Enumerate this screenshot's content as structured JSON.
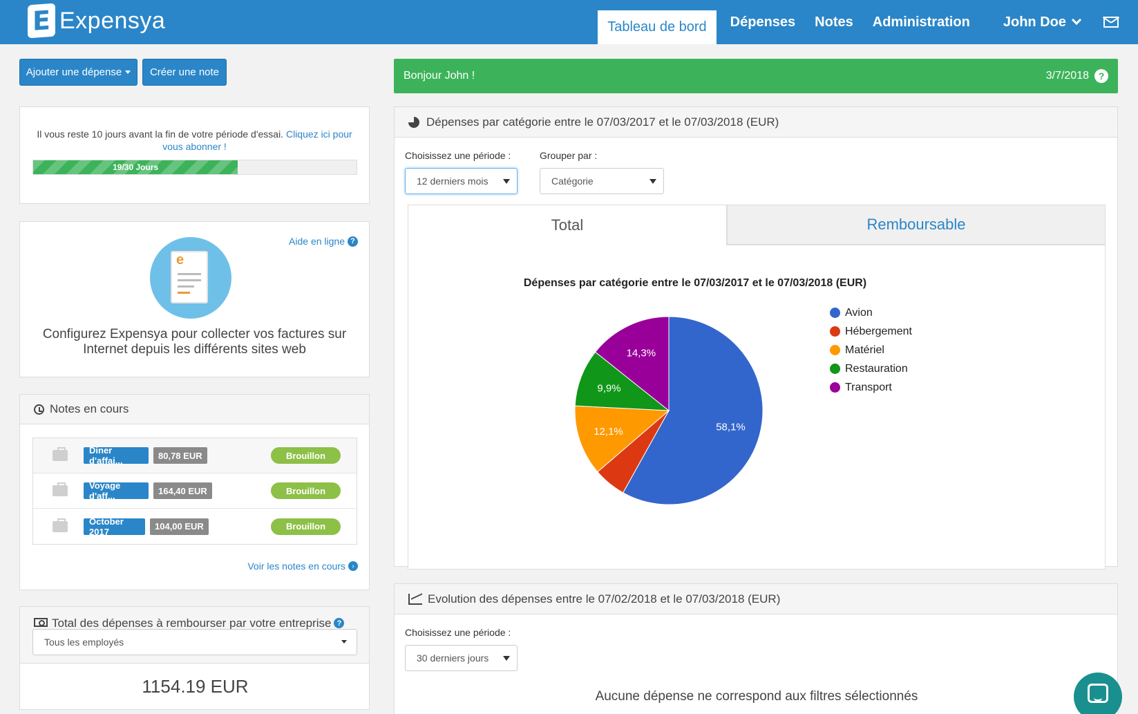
{
  "brand": {
    "logo_letter": "E",
    "name": "Expensya"
  },
  "nav": {
    "items": [
      {
        "label": "Tableau de bord",
        "active": true
      },
      {
        "label": "Dépenses"
      },
      {
        "label": "Notes"
      },
      {
        "label": "Administration"
      }
    ],
    "user": "John Doe"
  },
  "actions": {
    "add_expense": "Ajouter une dépense",
    "create_note": "Créer une note"
  },
  "trial": {
    "message": "Il vous reste 10 jours avant la fin de votre période d'essai.",
    "link": "Cliquez ici pour vous abonner !",
    "progress_label": "19/30 Jours",
    "progress_fraction": 0.633
  },
  "help": {
    "link": "Aide en ligne",
    "text": "Configurez Expensya pour collecter vos factures sur Internet depuis les différents sites web",
    "doc_letter": "e"
  },
  "notes": {
    "title": "Notes en cours",
    "rows": [
      {
        "name": "Diner d'affai...",
        "amount": "80,78 EUR",
        "status": "Brouillon"
      },
      {
        "name": "Voyage d'aff...",
        "amount": "164,40 EUR",
        "status": "Brouillon"
      },
      {
        "name": "October 2017",
        "amount": "104,00 EUR",
        "status": "Brouillon"
      }
    ],
    "more_link": "Voir les notes en cours"
  },
  "reimburse": {
    "title": "Total des dépenses à rembourser par votre entreprise",
    "employee_select": "Tous les employés",
    "total": "1154.19 EUR"
  },
  "greeting": {
    "text": "Bonjour John !",
    "date": "3/7/2018"
  },
  "category_panel": {
    "title": "Dépenses par catégorie entre le 07/03/2017 et le 07/03/2018 (EUR)",
    "period_label": "Choisissez une période :",
    "period_value": "12 derniers mois",
    "group_label": "Grouper par :",
    "group_value": "Catégorie",
    "tabs": [
      "Total",
      "Remboursable"
    ]
  },
  "chart_data": {
    "type": "pie",
    "title": "Dépenses par catégorie entre le 07/03/2017 et le 07/03/2018 (EUR)",
    "categories": [
      "Avion",
      "Hébergement",
      "Matériel",
      "Restauration",
      "Transport"
    ],
    "values": [
      58.1,
      5.6,
      12.1,
      9.9,
      14.3
    ],
    "labels": [
      "58,1%",
      "",
      "12,1%",
      "9,9%",
      "14,3%"
    ],
    "colors": [
      "#3366cc",
      "#dc3912",
      "#ff9900",
      "#109618",
      "#990099"
    ],
    "legend": "right"
  },
  "evolution_panel": {
    "title": "Evolution des dépenses entre le 07/02/2018 et le 07/03/2018 (EUR)",
    "period_label": "Choisissez une période :",
    "period_value": "30 derniers jours",
    "empty_message": "Aucune dépense ne correspond aux filtres sélectionnés"
  },
  "colors": {
    "primary": "#2a86c8",
    "success": "#3cb35a",
    "draft": "#8dc047"
  }
}
